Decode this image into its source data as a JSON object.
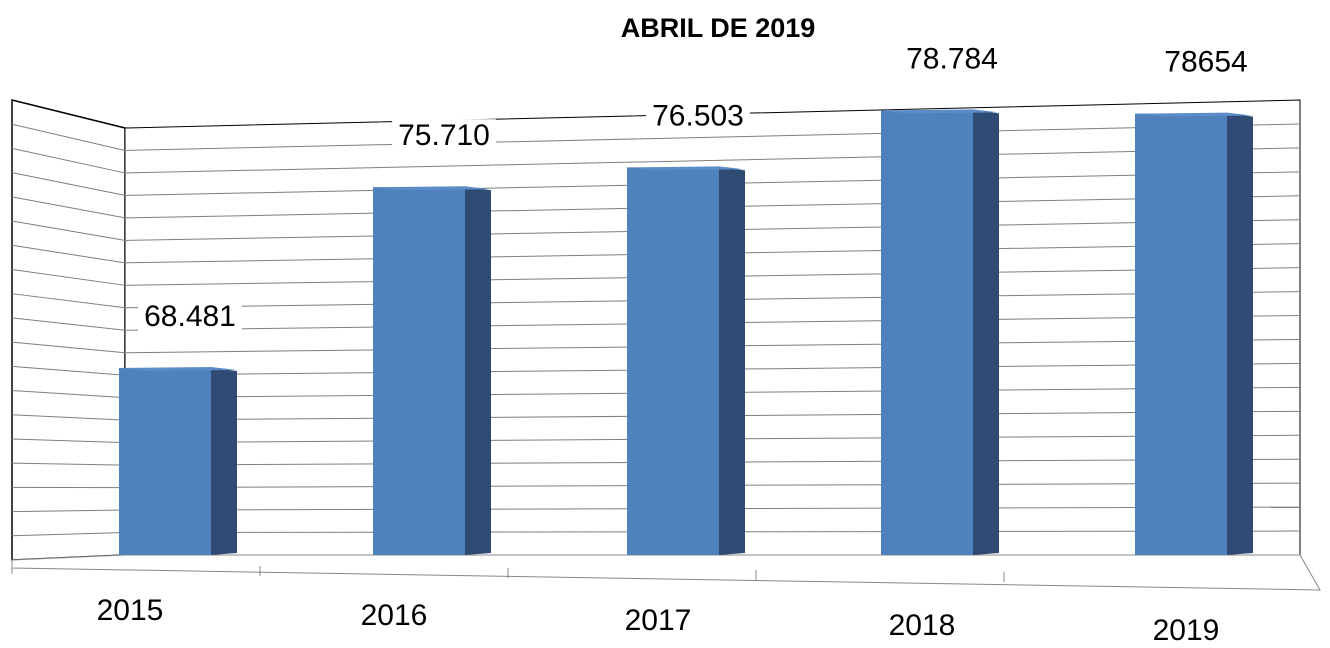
{
  "chart_data": {
    "type": "bar",
    "title": "ABRIL DE 2019",
    "categories": [
      "2015",
      "2016",
      "2017",
      "2018",
      "2019"
    ],
    "values": [
      68481,
      75710,
      76503,
      78784,
      78654
    ],
    "value_labels": [
      "68.481",
      "75.710",
      "76.503",
      "78.784",
      "78654"
    ],
    "color": "#4f81bd",
    "ylim": [
      61000,
      80000
    ],
    "grid": true
  }
}
